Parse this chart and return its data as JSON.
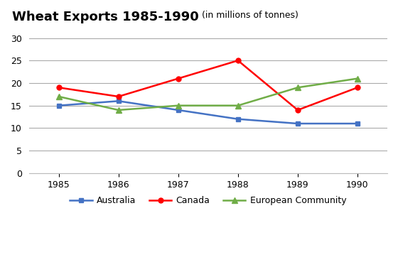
{
  "years": [
    1985,
    1986,
    1987,
    1988,
    1989,
    1990
  ],
  "australia": [
    15,
    16,
    14,
    12,
    11,
    11
  ],
  "canada": [
    19,
    17,
    21,
    25,
    14,
    19
  ],
  "european_community": [
    17,
    14,
    15,
    15,
    19,
    21
  ],
  "australia_color": "#4472C4",
  "canada_color": "#FF0000",
  "ec_color": "#70AD47",
  "title_main": "Wheat Exports 1985-1990",
  "title_sub": " (in millions of tonnes)",
  "ylim": [
    0,
    32
  ],
  "yticks": [
    0,
    5,
    10,
    15,
    20,
    25,
    30
  ],
  "background_color": "#FFFFFF",
  "grid_color": "#AAAAAA",
  "legend_labels": [
    "Australia",
    "Canada",
    "European Community"
  ]
}
